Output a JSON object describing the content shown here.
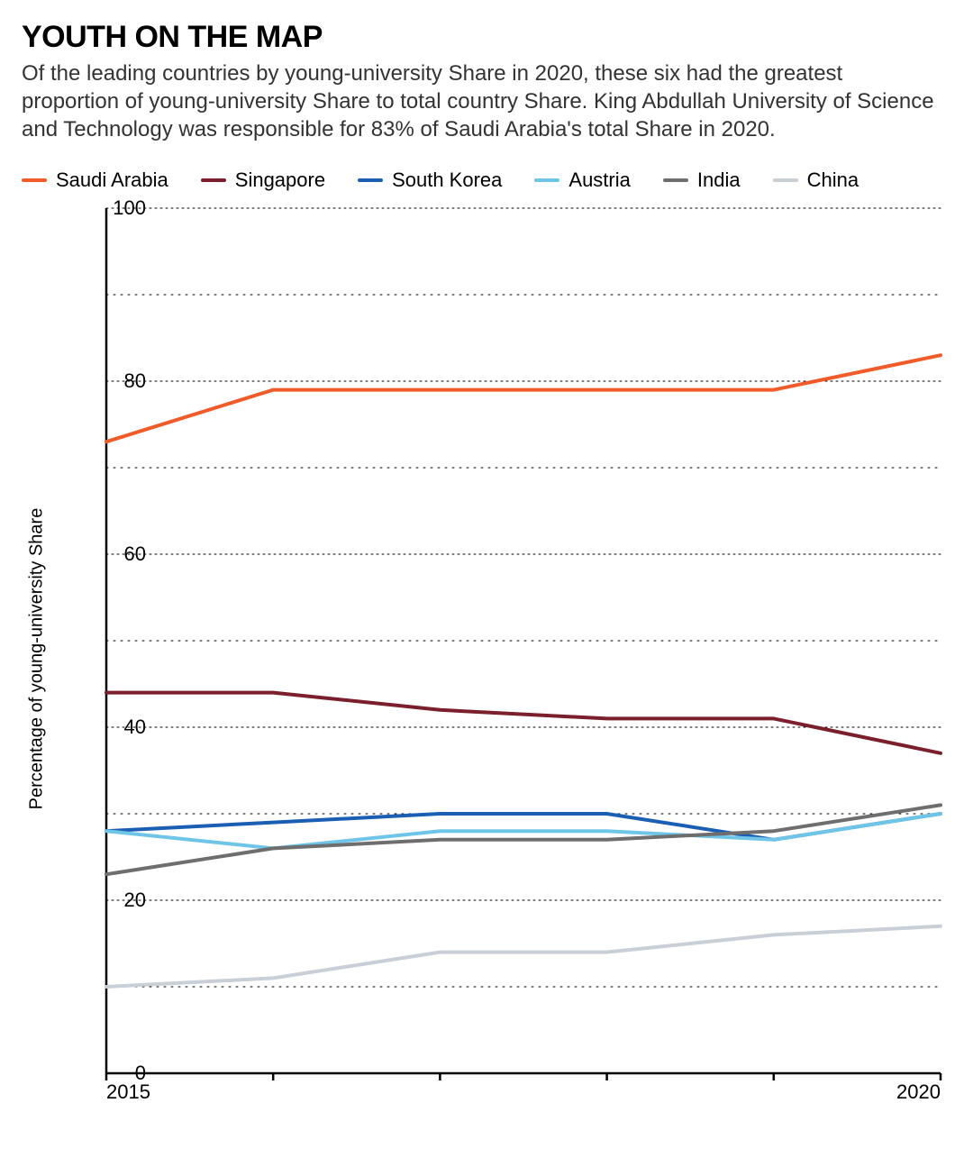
{
  "title": "YOUTH ON THE MAP",
  "subtitle": "Of the leading countries by young-university Share in 2020, these six had the greatest proportion of young-university Share to total country Share. King Abdullah University of Science and Technology was responsible for 83% of Saudi Arabia's total Share in 2020.",
  "ylabel": "Percentage of young-university Share",
  "chart": {
    "type": "line",
    "background_color": "#ffffff",
    "grid_color": "#000000",
    "grid_dotted": true,
    "axis_color": "#000000",
    "axis_width": 2.5,
    "line_width": 4,
    "title_fontsize": 34,
    "subtitle_fontsize": 24,
    "ylabel_fontsize": 20,
    "tick_fontsize": 22,
    "legend_fontsize": 22,
    "x_values": [
      2015,
      2016,
      2017,
      2018,
      2019,
      2020
    ],
    "xlim": [
      2015,
      2020
    ],
    "x_tick_labels": [
      "2015",
      "",
      "",
      "",
      "",
      "2020"
    ],
    "ylim": [
      0,
      100
    ],
    "y_ticks": [
      0,
      20,
      40,
      60,
      80,
      100
    ],
    "y_minor_ticks": [
      10,
      30,
      50,
      70,
      90
    ],
    "series": [
      {
        "name": "Saudi Arabia",
        "color": "#f15a29",
        "values": [
          73,
          79,
          79,
          79,
          79,
          83
        ]
      },
      {
        "name": "Singapore",
        "color": "#7a1f2b",
        "values": [
          44,
          44,
          42,
          41,
          41,
          37
        ]
      },
      {
        "name": "South Korea",
        "color": "#1a5fb4",
        "values": [
          28,
          29,
          30,
          30,
          27,
          30
        ]
      },
      {
        "name": "Austria",
        "color": "#6fc5e8",
        "values": [
          28,
          26,
          28,
          28,
          27,
          30
        ]
      },
      {
        "name": "India",
        "color": "#6e6e6e",
        "values": [
          23,
          26,
          27,
          27,
          28,
          31
        ]
      },
      {
        "name": "China",
        "color": "#c9cfd6",
        "values": [
          10,
          11,
          14,
          14,
          16,
          17
        ]
      }
    ]
  }
}
